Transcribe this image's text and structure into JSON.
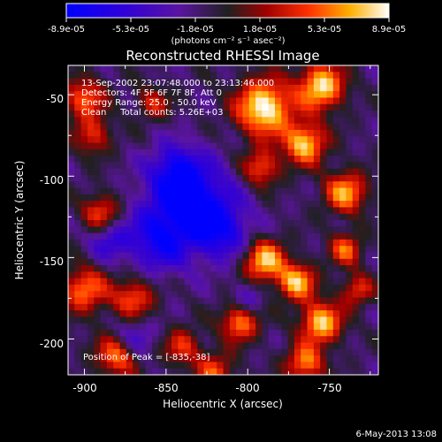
{
  "chart_data": {
    "type": "heatmap",
    "title": "Reconstructed RHESSI Image",
    "xlabel": "Heliocentric X (arcsec)",
    "ylabel": "Heliocentric Y (arcsec)",
    "xlim": [
      -910,
      -720
    ],
    "ylim": [
      -222,
      -32
    ],
    "x_ticks": [
      -900,
      -850,
      -800,
      -750
    ],
    "x_tick_labels": [
      "-900",
      "-850",
      "-800",
      "-750"
    ],
    "y_ticks": [
      -50,
      -100,
      -150,
      -200
    ],
    "y_tick_labels": [
      "-50",
      "-100",
      "-150",
      "-200"
    ],
    "colorbar": {
      "range": [
        -8.9e-05,
        8.9e-05
      ],
      "tick_labels": [
        "-8.9e-05",
        "-5.3e-05",
        "-1.8e-05",
        "1.8e-05",
        "5.3e-05",
        "8.9e-05"
      ],
      "unit_label": "(photons cm⁻² s⁻¹ asec⁻²)"
    },
    "annotations": [
      "13-Sep-2002 23:07:48.000 to 23:13:46.000",
      "Detectors: 4F 5F 6F 7F 8F, Att 0",
      "Energy Range: 25.0 - 50.0 keV",
      "Clean     Total counts: 5.26E+03"
    ],
    "peak_label": "Position of Peak = [-835,-38]",
    "peak": [
      -835,
      -38
    ]
  },
  "footer": {
    "date": "6-May-2013 13:08"
  }
}
